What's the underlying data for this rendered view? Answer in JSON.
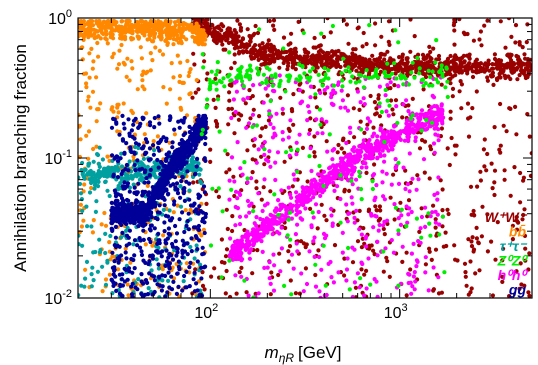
{
  "chart_data": {
    "type": "scatter",
    "xlabel": "m",
    "xlabel_sub": "ηR",
    "xlabel_unit": "[GeV]",
    "ylabel": "Annihilation branching fraction",
    "xscale": "log",
    "yscale": "log",
    "xlim": [
      20,
      5000
    ],
    "ylim": [
      0.01,
      1
    ],
    "x_tick_labels": [
      {
        "value": 100,
        "base": "10",
        "exp": "2"
      },
      {
        "value": 1000,
        "base": "10",
        "exp": "3"
      }
    ],
    "y_tick_labels": [
      {
        "value": 0.01,
        "base": "10",
        "exp": "-2"
      },
      {
        "value": 0.1,
        "base": "10",
        "exp": "-1"
      },
      {
        "value": 1,
        "base": "10",
        "exp": "0"
      }
    ],
    "grid": false,
    "legend_position": "right",
    "series": [
      {
        "name": "W+W-",
        "color": "#990000",
        "x_range": [
          80,
          5000
        ],
        "y_range": [
          0.01,
          1
        ],
        "trend": [
          [
            85,
            0.97
          ],
          [
            100,
            0.8
          ],
          [
            200,
            0.55
          ],
          [
            1000,
            0.45
          ],
          [
            5000,
            0.45
          ]
        ]
      },
      {
        "name": "bb",
        "color": "#ff8800",
        "x_range": [
          20,
          95
        ],
        "y_range": [
          0.01,
          0.95
        ],
        "trend": [
          [
            20,
            0.85
          ],
          [
            50,
            0.83
          ],
          [
            80,
            0.8
          ],
          [
            90,
            0.7
          ]
        ]
      },
      {
        "name": "τ+τ-",
        "color": "#00a0a0",
        "x_range": [
          20,
          90
        ],
        "y_range": [
          0.01,
          0.12
        ],
        "trend": [
          [
            20,
            0.077
          ],
          [
            40,
            0.08
          ],
          [
            60,
            0.085
          ],
          [
            80,
            0.09
          ]
        ]
      },
      {
        "name": "Z0Z0",
        "color": "#00ee00",
        "x_range": [
          90,
          1800
        ],
        "y_range": [
          0.01,
          0.9
        ],
        "trend": [
          [
            92,
            0.15
          ],
          [
            100,
            0.35
          ],
          [
            150,
            0.38
          ],
          [
            600,
            0.38
          ],
          [
            1500,
            0.4
          ]
        ]
      },
      {
        "name": "h0h0",
        "color": "#ff00ff",
        "x_range": [
          125,
          1700
        ],
        "y_range": [
          0.01,
          0.4
        ],
        "trend": [
          [
            125,
            0.02
          ],
          [
            300,
            0.05
          ],
          [
            600,
            0.1
          ],
          [
            1500,
            0.2
          ]
        ]
      },
      {
        "name": "gg",
        "color": "#000099",
        "x_range": [
          30,
          95
        ],
        "y_range": [
          0.01,
          0.2
        ],
        "trend": [
          [
            45,
            0.04
          ],
          [
            60,
            0.08
          ],
          [
            80,
            0.13
          ],
          [
            90,
            0.17
          ]
        ]
      }
    ],
    "legend": [
      {
        "text": "W⁺W⁻",
        "color": "#990000"
      },
      {
        "text": "bb̄",
        "color": "#ff8800"
      },
      {
        "text": "τ⁺τ⁻",
        "color": "#00a0a0"
      },
      {
        "text": "Z⁰Z⁰",
        "color": "#00ee00"
      },
      {
        "text": "h⁰h⁰",
        "color": "#ff00ff"
      },
      {
        "text": "gg",
        "color": "#000099"
      }
    ]
  }
}
